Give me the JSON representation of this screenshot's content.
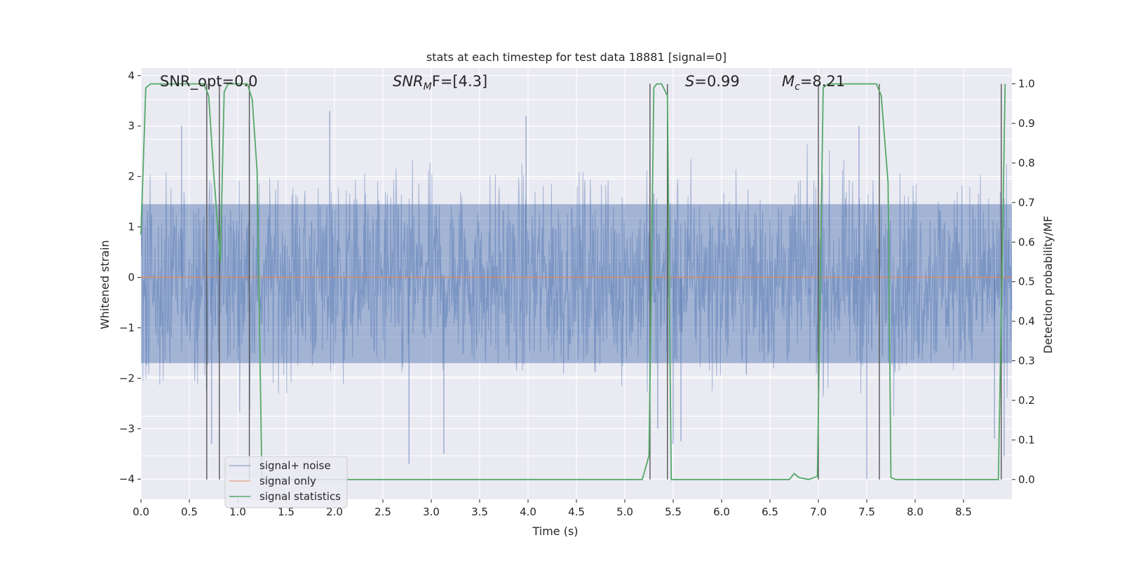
{
  "chart_data": {
    "type": "line",
    "title": "stats at each timestep for test data 18881 [signal=0]",
    "xlabel": "Time (s)",
    "ylabel": "Whitened strain",
    "y2label": "Detection probability/MF",
    "xlim": [
      0,
      9.0
    ],
    "ylim": [
      -4.4,
      4.15
    ],
    "y2lim": [
      -0.05,
      1.04
    ],
    "x_ticks": [
      0.0,
      0.5,
      1.0,
      1.5,
      2.0,
      2.5,
      3.0,
      3.5,
      4.0,
      4.5,
      5.0,
      5.5,
      6.0,
      6.5,
      7.0,
      7.5,
      8.0,
      8.5
    ],
    "x_tick_labels": [
      "0.0",
      "0.5",
      "1.0",
      "1.5",
      "2.0",
      "2.5",
      "3.0",
      "3.5",
      "4.0",
      "4.5",
      "5.0",
      "5.5",
      "6.0",
      "6.5",
      "7.0",
      "7.5",
      "8.0",
      "8.5"
    ],
    "y_ticks": [
      -4,
      -3,
      -2,
      -1,
      0,
      1,
      2,
      3,
      4
    ],
    "y_tick_labels": [
      "−4",
      "−3",
      "−2",
      "−1",
      "0",
      "1",
      "2",
      "3",
      "4"
    ],
    "y2_ticks": [
      0.0,
      0.1,
      0.2,
      0.3,
      0.4,
      0.5,
      0.6,
      0.7,
      0.8,
      0.9,
      1.0
    ],
    "y2_tick_labels": [
      "0.0",
      "0.1",
      "0.2",
      "0.3",
      "0.4",
      "0.5",
      "0.6",
      "0.7",
      "0.8",
      "0.9",
      "1.0"
    ],
    "y2_grid": [
      0.06,
      0.16,
      0.26,
      0.36,
      0.46,
      0.56,
      0.66,
      0.76,
      0.86,
      0.96
    ],
    "grid": true,
    "background": "#eaeaf2",
    "legend_position": "lower-left",
    "annotations": {
      "snr_opt": "SNR_opt=0.0",
      "snr_mf_label": "SNR",
      "snr_mf_sub": "M",
      "snr_mf_rest": "F=[4.3]",
      "s_italic": "S",
      "s_rest": "=0.99",
      "mc_italic": "M",
      "mc_sub": "c",
      "mc_rest": "=8.21"
    },
    "series": [
      {
        "name": "signal+ noise",
        "color": "#4c72b0",
        "kind": "noise",
        "n_samples": 1800,
        "bulk_amplitude": 1.55,
        "peak_amplitude": 3.6,
        "sample_peaks": [
          [
            0.42,
            3.0
          ],
          [
            0.73,
            -3.3
          ],
          [
            1.12,
            3.1
          ],
          [
            1.95,
            3.3
          ],
          [
            2.77,
            -3.7
          ],
          [
            3.13,
            -3.5
          ],
          [
            3.98,
            3.2
          ],
          [
            5.34,
            -3.0
          ],
          [
            5.5,
            -3.3
          ],
          [
            5.58,
            -3.25
          ],
          [
            7.42,
            3.0
          ],
          [
            7.5,
            -4.0
          ],
          [
            8.82,
            -3.2
          ],
          [
            8.92,
            -3.55
          ]
        ]
      },
      {
        "name": "signal only",
        "color": "#dd8452",
        "kind": "constant",
        "value": 0.0
      },
      {
        "name": "signal statistics",
        "color": "#55a868",
        "kind": "probability",
        "x": [
          0.0,
          0.05,
          0.1,
          0.65,
          0.7,
          0.75,
          0.82,
          0.86,
          0.9,
          1.1,
          1.15,
          1.2,
          1.25,
          5.18,
          5.25,
          5.3,
          5.33,
          5.38,
          5.44,
          5.48,
          6.7,
          6.75,
          6.8,
          6.9,
          6.99,
          7.05,
          7.1,
          7.6,
          7.65,
          7.72,
          7.75,
          7.8,
          8.86,
          8.91,
          8.93
        ],
        "y": [
          0.62,
          0.99,
          1.0,
          1.0,
          0.97,
          0.78,
          0.55,
          0.98,
          1.0,
          1.0,
          0.96,
          0.78,
          0.0,
          0.0,
          0.06,
          0.99,
          1.0,
          1.0,
          0.97,
          0.0,
          0.0,
          0.015,
          0.005,
          0.0,
          0.008,
          0.99,
          1.0,
          1.0,
          0.97,
          0.75,
          0.005,
          0.0,
          0.0,
          0.7,
          1.0
        ]
      }
    ],
    "event_lines_x": [
      0.68,
      0.81,
      1.12,
      5.26,
      5.44,
      7.0,
      7.63,
      8.89
    ],
    "event_lines_y2": [
      0.0,
      1.0
    ]
  }
}
